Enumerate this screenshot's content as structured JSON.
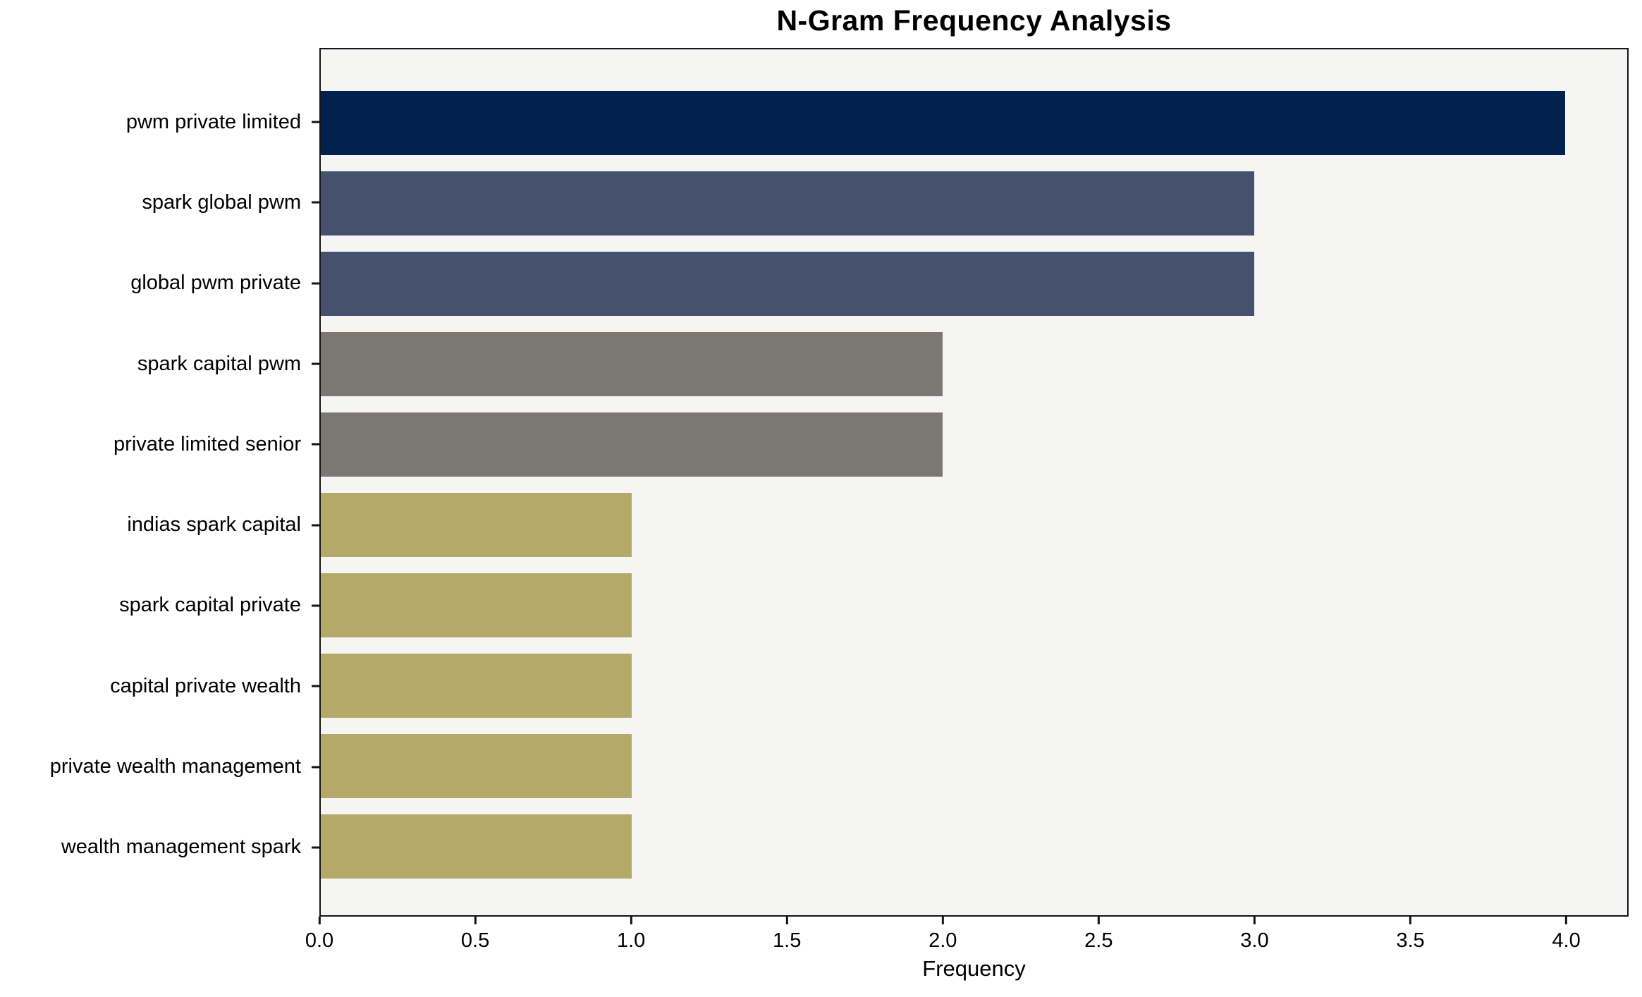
{
  "chart_data": {
    "type": "bar",
    "orientation": "horizontal",
    "title": "N-Gram Frequency Analysis",
    "xlabel": "Frequency",
    "categories": [
      "pwm private limited",
      "spark global pwm",
      "global pwm private",
      "spark capital pwm",
      "private limited senior",
      "indias spark capital",
      "spark capital private",
      "capital private wealth",
      "private wealth management",
      "wealth management spark"
    ],
    "values": [
      4,
      3,
      3,
      2,
      2,
      1,
      1,
      1,
      1,
      1
    ],
    "bar_colors": [
      "#01224E",
      "#46506F",
      "#46506F",
      "#7B7872",
      "#7B7872",
      "#B5A96A",
      "#B5A96A",
      "#B5A96A",
      "#B5A96A",
      "#B5A96A"
    ],
    "xlim": [
      0,
      4.2
    ],
    "x_ticks": [
      {
        "value": 0.0,
        "label": "0.0"
      },
      {
        "value": 0.5,
        "label": "0.5"
      },
      {
        "value": 1.0,
        "label": "1.0"
      },
      {
        "value": 1.5,
        "label": "1.5"
      },
      {
        "value": 2.0,
        "label": "2.0"
      },
      {
        "value": 2.5,
        "label": "2.5"
      },
      {
        "value": 3.0,
        "label": "3.0"
      },
      {
        "value": 3.5,
        "label": "3.5"
      },
      {
        "value": 4.0,
        "label": "4.0"
      }
    ],
    "grid": false,
    "legend_position": "none",
    "plot_background": "#F5F5F4",
    "figure_background": "#FFFFFF",
    "spine_color": "#141414",
    "text_color": "#000000"
  }
}
